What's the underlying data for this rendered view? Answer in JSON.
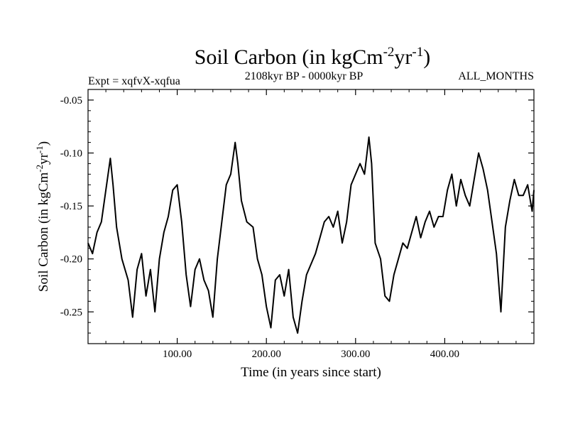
{
  "chart_data": {
    "type": "line",
    "title": "Soil Carbon (in kgCm",
    "title_sup1": "-2",
    "title_mid": "yr",
    "title_sup2": "-1",
    "title_end": ")",
    "expt_label": "Expt = xqfvX-xqfua",
    "period_label": "2108kyr BP - 0000kyr BP",
    "months_label": "ALL_MONTHS",
    "xlabel": "Time (in years since start)",
    "ylabel": "Soil Carbon (in kgCm",
    "ylabel_sup1": "-2",
    "ylabel_mid": "yr",
    "ylabel_sup2": "-1",
    "ylabel_end": ")",
    "xlim": [
      0,
      500
    ],
    "ylim": [
      -0.28,
      -0.04
    ],
    "x_ticks": [
      100,
      200,
      300,
      400
    ],
    "x_tick_labels": [
      "100.00",
      "200.00",
      "300.00",
      "400.00"
    ],
    "y_ticks": [
      -0.05,
      -0.1,
      -0.15,
      -0.2,
      -0.25
    ],
    "y_tick_labels": [
      "-0.05",
      "-0.10",
      "-0.15",
      "-0.20",
      "-0.25"
    ],
    "series": [
      {
        "name": "Soil Carbon",
        "color": "#000000",
        "x": [
          0,
          5,
          10,
          15,
          20,
          25,
          28,
          32,
          38,
          45,
          50,
          55,
          60,
          65,
          70,
          75,
          80,
          85,
          90,
          95,
          100,
          105,
          110,
          115,
          120,
          125,
          130,
          135,
          140,
          145,
          150,
          155,
          160,
          165,
          168,
          172,
          178,
          185,
          190,
          195,
          200,
          205,
          210,
          215,
          220,
          225,
          230,
          235,
          240,
          245,
          250,
          255,
          260,
          265,
          270,
          275,
          280,
          285,
          290,
          295,
          300,
          305,
          310,
          315,
          318,
          322,
          328,
          333,
          338,
          343,
          348,
          353,
          358,
          363,
          368,
          373,
          378,
          383,
          388,
          393,
          398,
          403,
          408,
          413,
          418,
          423,
          428,
          433,
          438,
          443,
          448,
          453,
          458,
          463,
          468,
          473,
          478,
          483,
          488,
          493,
          498,
          500
        ],
        "values": [
          -0.185,
          -0.195,
          -0.175,
          -0.165,
          -0.135,
          -0.105,
          -0.13,
          -0.17,
          -0.2,
          -0.22,
          -0.255,
          -0.21,
          -0.195,
          -0.235,
          -0.21,
          -0.25,
          -0.2,
          -0.175,
          -0.16,
          -0.135,
          -0.13,
          -0.165,
          -0.215,
          -0.245,
          -0.21,
          -0.2,
          -0.22,
          -0.23,
          -0.255,
          -0.2,
          -0.165,
          -0.13,
          -0.12,
          -0.09,
          -0.11,
          -0.145,
          -0.165,
          -0.17,
          -0.2,
          -0.215,
          -0.245,
          -0.265,
          -0.22,
          -0.215,
          -0.235,
          -0.21,
          -0.255,
          -0.27,
          -0.24,
          -0.215,
          -0.205,
          -0.195,
          -0.18,
          -0.165,
          -0.16,
          -0.17,
          -0.155,
          -0.185,
          -0.165,
          -0.13,
          -0.12,
          -0.11,
          -0.12,
          -0.085,
          -0.11,
          -0.185,
          -0.2,
          -0.235,
          -0.24,
          -0.215,
          -0.2,
          -0.185,
          -0.19,
          -0.175,
          -0.16,
          -0.18,
          -0.165,
          -0.155,
          -0.17,
          -0.16,
          -0.16,
          -0.135,
          -0.12,
          -0.15,
          -0.125,
          -0.14,
          -0.15,
          -0.125,
          -0.1,
          -0.115,
          -0.135,
          -0.165,
          -0.195,
          -0.25,
          -0.17,
          -0.145,
          -0.125,
          -0.14,
          -0.14,
          -0.13,
          -0.155,
          -0.135
        ]
      }
    ]
  }
}
